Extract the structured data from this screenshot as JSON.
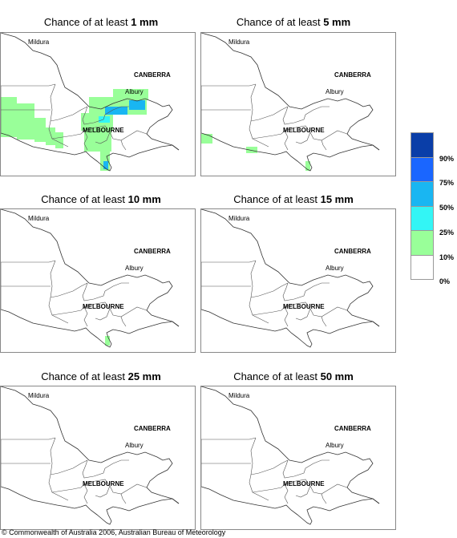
{
  "panels": [
    {
      "prefix": "Chance of at least ",
      "amount": "1 mm",
      "shading": "heavy"
    },
    {
      "prefix": "Chance of at least ",
      "amount": "5 mm",
      "shading": "light"
    },
    {
      "prefix": "Chance of at least ",
      "amount": "10 mm",
      "shading": "tiny"
    },
    {
      "prefix": "Chance of at least ",
      "amount": "15 mm",
      "shading": "none"
    },
    {
      "prefix": "Chance of at least ",
      "amount": "25 mm",
      "shading": "none"
    },
    {
      "prefix": "Chance of at least ",
      "amount": "50 mm",
      "shading": "none"
    }
  ],
  "cities": {
    "mildura": "Mildura",
    "canberra": "CANBERRA",
    "albury": "Albury",
    "melbourne": "MELBOURNE"
  },
  "legend": {
    "labels": [
      "90%",
      "75%",
      "50%",
      "25%",
      "10%",
      "0%"
    ],
    "colors": [
      "#0a3ea8",
      "#1a66ff",
      "#19b6f2",
      "#33f5f5",
      "#99ff99",
      "#ffffff"
    ]
  },
  "copyright": "© Commonwealth of Australia 2006, Australian Bureau of Meteorology"
}
